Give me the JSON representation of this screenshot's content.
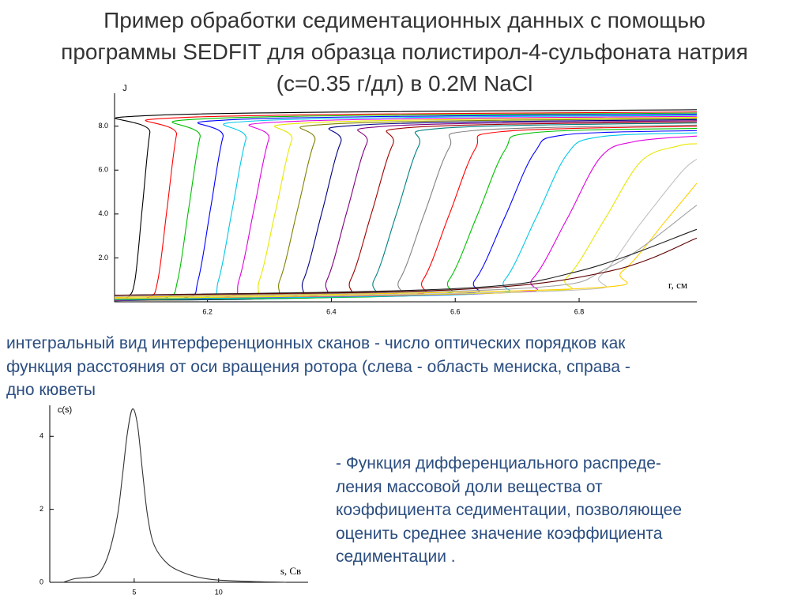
{
  "slide": {
    "title": "Пример обработки седиментационных данных с помощью\nпрограммы SEDFIT для образца полистирол-4-сульфоната натрия\n(с=0.35 г/дл) в 0.2М NaCl",
    "caption_scans": "интегральный вид интерференционных сканов - число оптических порядков  как\nфункция расстояния от оси вращения ротора (слева -  область мениска, справа -\nдно кюветы",
    "caption_distribution": "- Функция дифференциального распреде-\nления массовой доли вещества от\nкоэффициента седиментации, позволяющее\nоценить среднее значение коэффициента\nседиментации  ."
  },
  "chart_data": [
    {
      "type": "line",
      "y_label": "J",
      "x_label": "r, см",
      "xlim": [
        6.05,
        6.99
      ],
      "xticks": [
        6.2,
        6.4,
        6.6,
        6.8
      ],
      "ylim": [
        0,
        9.5
      ],
      "yticks": [
        {
          "value": 2,
          "label": "2.0"
        },
        {
          "value": 4,
          "label": "4.0"
        },
        {
          "value": 6,
          "label": "6.0"
        },
        {
          "value": 8,
          "label": "8.0"
        }
      ],
      "series": [
        {
          "color": "#000000",
          "x": [
            6.05,
            6.071,
            6.083,
            6.095,
            6.107,
            6.119,
            6.99
          ],
          "values": [
            0.05,
            0.2,
            1.0,
            4.35,
            7.7,
            8.5,
            8.75
          ]
        },
        {
          "color": "#ff0000",
          "x": [
            6.05,
            6.105,
            6.12,
            6.135,
            6.15,
            6.165,
            6.99
          ],
          "values": [
            0.05,
            0.2,
            1.0,
            4.3,
            7.6,
            8.4,
            8.65
          ]
        },
        {
          "color": "#00c000",
          "x": [
            6.05,
            6.134,
            6.152,
            6.17,
            6.188,
            6.206,
            6.99
          ],
          "values": [
            0.05,
            0.2,
            1.0,
            4.3,
            7.5,
            8.35,
            8.6
          ]
        },
        {
          "color": "#0000ff",
          "x": [
            6.05,
            6.165,
            6.185,
            6.205,
            6.225,
            6.245,
            6.99
          ],
          "values": [
            0.05,
            0.2,
            1.0,
            4.25,
            7.5,
            8.3,
            8.55
          ]
        },
        {
          "color": "#00c8e8",
          "x": [
            6.05,
            6.196,
            6.218,
            6.24,
            6.262,
            6.284,
            6.99
          ],
          "values": [
            0.06,
            0.2,
            1.0,
            4.2,
            7.4,
            8.25,
            8.5
          ]
        },
        {
          "color": "#e000e0",
          "x": [
            6.05,
            6.227,
            6.251,
            6.275,
            6.299,
            6.323,
            6.99
          ],
          "values": [
            0.06,
            0.2,
            1.0,
            4.2,
            7.4,
            8.2,
            8.45
          ]
        },
        {
          "color": "#e8e800",
          "x": [
            6.05,
            6.258,
            6.284,
            6.31,
            6.336,
            6.362,
            6.99
          ],
          "values": [
            0.07,
            0.2,
            1.0,
            4.15,
            7.35,
            8.15,
            8.4
          ]
        },
        {
          "color": "#808000",
          "x": [
            6.05,
            6.289,
            6.317,
            6.345,
            6.373,
            6.401,
            6.99
          ],
          "values": [
            0.07,
            0.2,
            1.0,
            4.15,
            7.3,
            8.1,
            8.35
          ]
        },
        {
          "color": "#000080",
          "x": [
            6.05,
            6.325,
            6.355,
            6.385,
            6.415,
            6.445,
            6.99
          ],
          "values": [
            0.08,
            0.2,
            1.0,
            4.1,
            7.25,
            8.05,
            8.3
          ]
        },
        {
          "color": "#800080",
          "x": [
            6.05,
            6.361,
            6.393,
            6.425,
            6.457,
            6.489,
            6.99
          ],
          "values": [
            0.08,
            0.25,
            1.0,
            4.1,
            7.2,
            8.0,
            8.25
          ]
        },
        {
          "color": "#a00000",
          "x": [
            6.05,
            6.397,
            6.431,
            6.465,
            6.499,
            6.533,
            6.99
          ],
          "values": [
            0.09,
            0.25,
            1.0,
            4.05,
            7.15,
            7.95,
            8.2
          ]
        },
        {
          "color": "#008080",
          "x": [
            6.05,
            6.433,
            6.469,
            6.505,
            6.541,
            6.577,
            6.99
          ],
          "values": [
            0.09,
            0.25,
            1.0,
            4.0,
            7.1,
            7.9,
            8.15
          ]
        },
        {
          "color": "#808080",
          "x": [
            6.05,
            6.47,
            6.51,
            6.55,
            6.59,
            6.63,
            6.99
          ],
          "values": [
            0.1,
            0.3,
            1.0,
            4.0,
            7.0,
            7.8,
            8.05
          ]
        },
        {
          "color": "#ff0000",
          "x": [
            6.05,
            6.506,
            6.548,
            6.59,
            6.632,
            6.674,
            6.99
          ],
          "values": [
            0.1,
            0.3,
            1.0,
            3.95,
            6.95,
            7.75,
            8.0
          ]
        },
        {
          "color": "#00c000",
          "x": [
            6.05,
            6.545,
            6.59,
            6.635,
            6.68,
            6.725,
            6.99
          ],
          "values": [
            0.1,
            0.3,
            1.0,
            3.9,
            6.9,
            7.7,
            7.9
          ]
        },
        {
          "color": "#0000ff",
          "x": [
            6.05,
            6.584,
            6.632,
            6.68,
            6.728,
            6.776,
            6.99
          ],
          "values": [
            0.12,
            0.35,
            1.0,
            3.85,
            6.8,
            7.6,
            7.8
          ]
        },
        {
          "color": "#00c8e8",
          "x": [
            6.05,
            6.63,
            6.68,
            6.73,
            6.78,
            6.83,
            6.99
          ],
          "values": [
            0.12,
            0.35,
            1.0,
            3.8,
            6.7,
            7.5,
            7.7
          ]
        },
        {
          "color": "#e000e0",
          "x": [
            6.05,
            6.67,
            6.725,
            6.78,
            6.835,
            6.89,
            6.99
          ],
          "values": [
            0.15,
            0.4,
            1.05,
            3.75,
            6.6,
            7.3,
            7.55
          ]
        },
        {
          "color": "#e8e800",
          "x": [
            6.05,
            6.72,
            6.78,
            6.84,
            6.9,
            6.96,
            6.99
          ],
          "values": [
            0.15,
            0.45,
            1.1,
            3.7,
            6.4,
            7.1,
            7.2
          ]
        },
        {
          "color": "#c0c0c0",
          "x": [
            6.05,
            6.77,
            6.835,
            6.9,
            6.965,
            6.99
          ],
          "values": [
            0.2,
            0.5,
            1.2,
            3.6,
            5.9,
            6.5
          ]
        },
        {
          "color": "#ffd000",
          "x": [
            6.05,
            6.8,
            6.87,
            6.94,
            6.99
          ],
          "values": [
            0.2,
            0.6,
            1.4,
            3.7,
            5.4
          ]
        },
        {
          "color": "#a0a0a0",
          "x": [
            6.05,
            6.7,
            6.85,
            6.99
          ],
          "values": [
            0.25,
            0.6,
            1.6,
            4.4
          ]
        },
        {
          "color": "#202020",
          "x": [
            6.05,
            6.6,
            6.8,
            6.99
          ],
          "values": [
            0.3,
            0.6,
            1.4,
            3.3
          ]
        },
        {
          "color": "#600000",
          "x": [
            6.05,
            6.6,
            6.85,
            6.99
          ],
          "values": [
            0.3,
            0.55,
            1.4,
            2.9
          ]
        }
      ]
    },
    {
      "type": "line",
      "y_label": "c(s)",
      "x_label": "s, Св",
      "xlim": [
        0,
        15.3
      ],
      "xticks": [
        5,
        10
      ],
      "ylim": [
        0,
        4.85
      ],
      "yticks": [
        0,
        2,
        4
      ],
      "color": "#333333",
      "x": [
        0.8,
        1.5,
        2.5,
        3.0,
        3.5,
        4.0,
        4.3,
        4.6,
        4.9,
        5.2,
        5.5,
        5.8,
        6.2,
        7.0,
        8.0,
        9.0,
        10.0,
        12.0,
        14.0
      ],
      "values": [
        0.0,
        0.1,
        0.15,
        0.3,
        0.8,
        1.8,
        2.9,
        4.1,
        4.75,
        4.3,
        3.0,
        1.8,
        1.0,
        0.5,
        0.25,
        0.12,
        0.06,
        0.02,
        0.0
      ]
    }
  ]
}
